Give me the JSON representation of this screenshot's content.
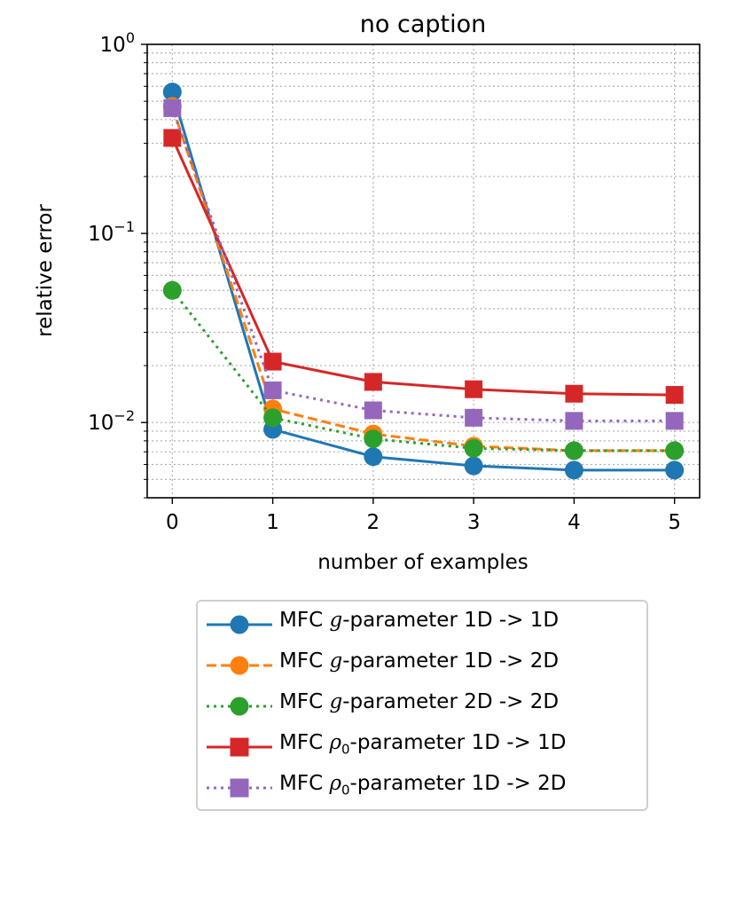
{
  "chart_data": {
    "type": "line",
    "title": "no caption",
    "xlabel": "number of examples",
    "ylabel": "relative error",
    "yscale": "log",
    "xlim": [
      -0.25,
      5.25
    ],
    "ylim": [
      0.004,
      1.0
    ],
    "x": [
      0,
      1,
      2,
      3,
      4,
      5
    ],
    "xticks": [
      "0",
      "1",
      "2",
      "3",
      "4",
      "5"
    ],
    "yticks": [
      {
        "value": 1.0,
        "base": "10",
        "exp": "0"
      },
      {
        "value": 0.1,
        "base": "10",
        "exp": "−1"
      },
      {
        "value": 0.01,
        "base": "10",
        "exp": "−2"
      }
    ],
    "grid": true,
    "legend_position": "below",
    "series": [
      {
        "name": "MFC g-parameter 1D -> 1D",
        "pre": "MFC ",
        "sym": "g",
        "sub": "",
        "post": "-parameter 1D -> 1D",
        "color": "#1f77b4",
        "dash": "solid",
        "marker": "circle",
        "values": [
          0.56,
          0.0092,
          0.0066,
          0.0059,
          0.0056,
          0.0056
        ]
      },
      {
        "name": "MFC g-parameter 1D -> 2D",
        "pre": "MFC ",
        "sym": "g",
        "sub": "",
        "post": "-parameter 1D -> 2D",
        "color": "#ff7f0e",
        "dash": "dashed",
        "marker": "circle",
        "values": [
          0.47,
          0.0118,
          0.0087,
          0.0075,
          0.0071,
          0.0071
        ]
      },
      {
        "name": "MFC g-parameter 2D -> 2D",
        "pre": "MFC ",
        "sym": "g",
        "sub": "",
        "post": "-parameter 2D -> 2D",
        "color": "#2ca02c",
        "dash": "dotted",
        "marker": "circle",
        "values": [
          0.05,
          0.0106,
          0.0082,
          0.0073,
          0.0071,
          0.0071
        ]
      },
      {
        "name": "MFC ρ0-parameter 1D -> 1D",
        "pre": "MFC ",
        "sym": "ρ",
        "sub": "0",
        "post": "-parameter 1D -> 1D",
        "color": "#d62728",
        "dash": "solid",
        "marker": "square",
        "values": [
          0.32,
          0.021,
          0.0164,
          0.015,
          0.0142,
          0.014
        ]
      },
      {
        "name": "MFC ρ0-parameter 1D -> 2D",
        "pre": "MFC ",
        "sym": "ρ",
        "sub": "0",
        "post": "-parameter 1D -> 2D",
        "color": "#9467bd",
        "dash": "dotted",
        "marker": "square",
        "values": [
          0.46,
          0.0148,
          0.0116,
          0.0106,
          0.0102,
          0.0102
        ]
      }
    ]
  }
}
